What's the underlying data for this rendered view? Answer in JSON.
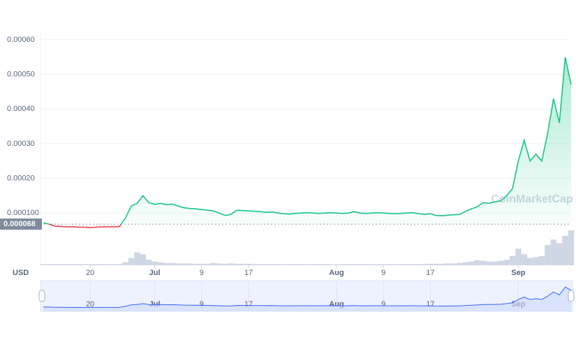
{
  "chart_data": {
    "type": "line",
    "currency": "USD",
    "watermark": "CoinMarketCap",
    "categories": [
      null,
      null,
      null,
      null,
      null,
      null,
      null,
      null,
      "20",
      null,
      null,
      null,
      null,
      null,
      null,
      null,
      null,
      null,
      null,
      "Jul",
      null,
      null,
      null,
      null,
      null,
      null,
      null,
      "9",
      null,
      null,
      null,
      null,
      null,
      null,
      null,
      "17",
      null,
      null,
      null,
      null,
      null,
      null,
      null,
      null,
      null,
      null,
      null,
      null,
      null,
      null,
      "Aug",
      null,
      null,
      null,
      null,
      null,
      null,
      null,
      "9",
      null,
      null,
      null,
      null,
      null,
      null,
      null,
      "17",
      null,
      null,
      null,
      null,
      null,
      null,
      null,
      null,
      null,
      null,
      null,
      null,
      null,
      null,
      "Sep",
      null,
      null,
      null,
      null,
      null,
      null,
      null,
      null,
      null
    ],
    "series": [
      {
        "name": "Price",
        "color": "#16c784",
        "color_below": "#ea3943",
        "values": [
          7.2e-05,
          6.8e-05,
          6.2e-05,
          6.1e-05,
          6e-05,
          6e-05,
          5.9e-05,
          5.9e-05,
          5.8e-05,
          5.9e-05,
          6e-05,
          6e-05,
          6e-05,
          6.1e-05,
          8.5e-05,
          0.00012,
          0.000128,
          0.00015,
          0.00013,
          0.000125,
          0.000128,
          0.000124,
          0.000126,
          0.00012,
          0.000115,
          0.000113,
          0.000112,
          0.00011,
          0.000108,
          0.000106,
          0.0001,
          9.3e-05,
          9.6e-05,
          0.000108,
          0.000107,
          0.000106,
          0.000105,
          0.000104,
          0.000102,
          0.000103,
          0.0001,
          9.8e-05,
          9.7e-05,
          9.9e-05,
          0.0001,
          0.000101,
          0.0001,
          9.9e-05,
          0.0001,
          0.000101,
          0.0001,
          9.9e-05,
          0.0001,
          0.000104,
          0.0001,
          9.9e-05,
          0.0001,
          0.000101,
          0.0001,
          9.9e-05,
          9.8e-05,
          9.9e-05,
          0.0001,
          0.000101,
          9.8e-05,
          9.6e-05,
          9.8e-05,
          9.3e-05,
          9.2e-05,
          9.4e-05,
          9.5e-05,
          9.6e-05,
          0.000105,
          0.000112,
          0.000118,
          0.00013,
          0.000128,
          0.000132,
          0.000135,
          0.00015,
          0.00017,
          0.00025,
          0.00031,
          0.00025,
          0.00027,
          0.00025,
          0.00033,
          0.00043,
          0.00036,
          0.00055,
          0.00047
        ]
      },
      {
        "name": "Volume",
        "color": "#cfd6e4",
        "values": [
          3,
          3,
          3,
          3,
          3,
          3,
          3,
          3,
          3,
          3,
          3,
          3,
          3,
          3,
          8,
          20,
          35,
          30,
          15,
          10,
          8,
          6,
          6,
          5,
          5,
          5,
          4,
          4,
          4,
          6,
          5,
          4,
          5,
          4,
          4,
          4,
          3,
          3,
          3,
          3,
          3,
          3,
          3,
          3,
          3,
          3,
          3,
          3,
          3,
          3,
          3,
          3,
          3,
          3,
          3,
          3,
          3,
          3,
          3,
          3,
          3,
          3,
          3,
          3,
          3,
          3,
          4,
          4,
          4,
          5,
          5,
          6,
          8,
          10,
          14,
          12,
          10,
          10,
          12,
          15,
          25,
          45,
          30,
          20,
          22,
          25,
          55,
          70,
          60,
          80,
          95
        ]
      }
    ],
    "reference": 6.8e-05,
    "ylim": [
      5e-05,
      0.00062
    ],
    "yticks": [
      {
        "value": 0.0006,
        "label": "0.00060"
      },
      {
        "value": 0.0005,
        "label": "0.00050"
      },
      {
        "value": 0.0004,
        "label": "0.00040"
      },
      {
        "value": 0.0003,
        "label": "0.00030"
      },
      {
        "value": 0.0002,
        "label": "0.00020"
      },
      {
        "value": 0.0001,
        "label": "0.000100"
      }
    ],
    "grid": true
  }
}
